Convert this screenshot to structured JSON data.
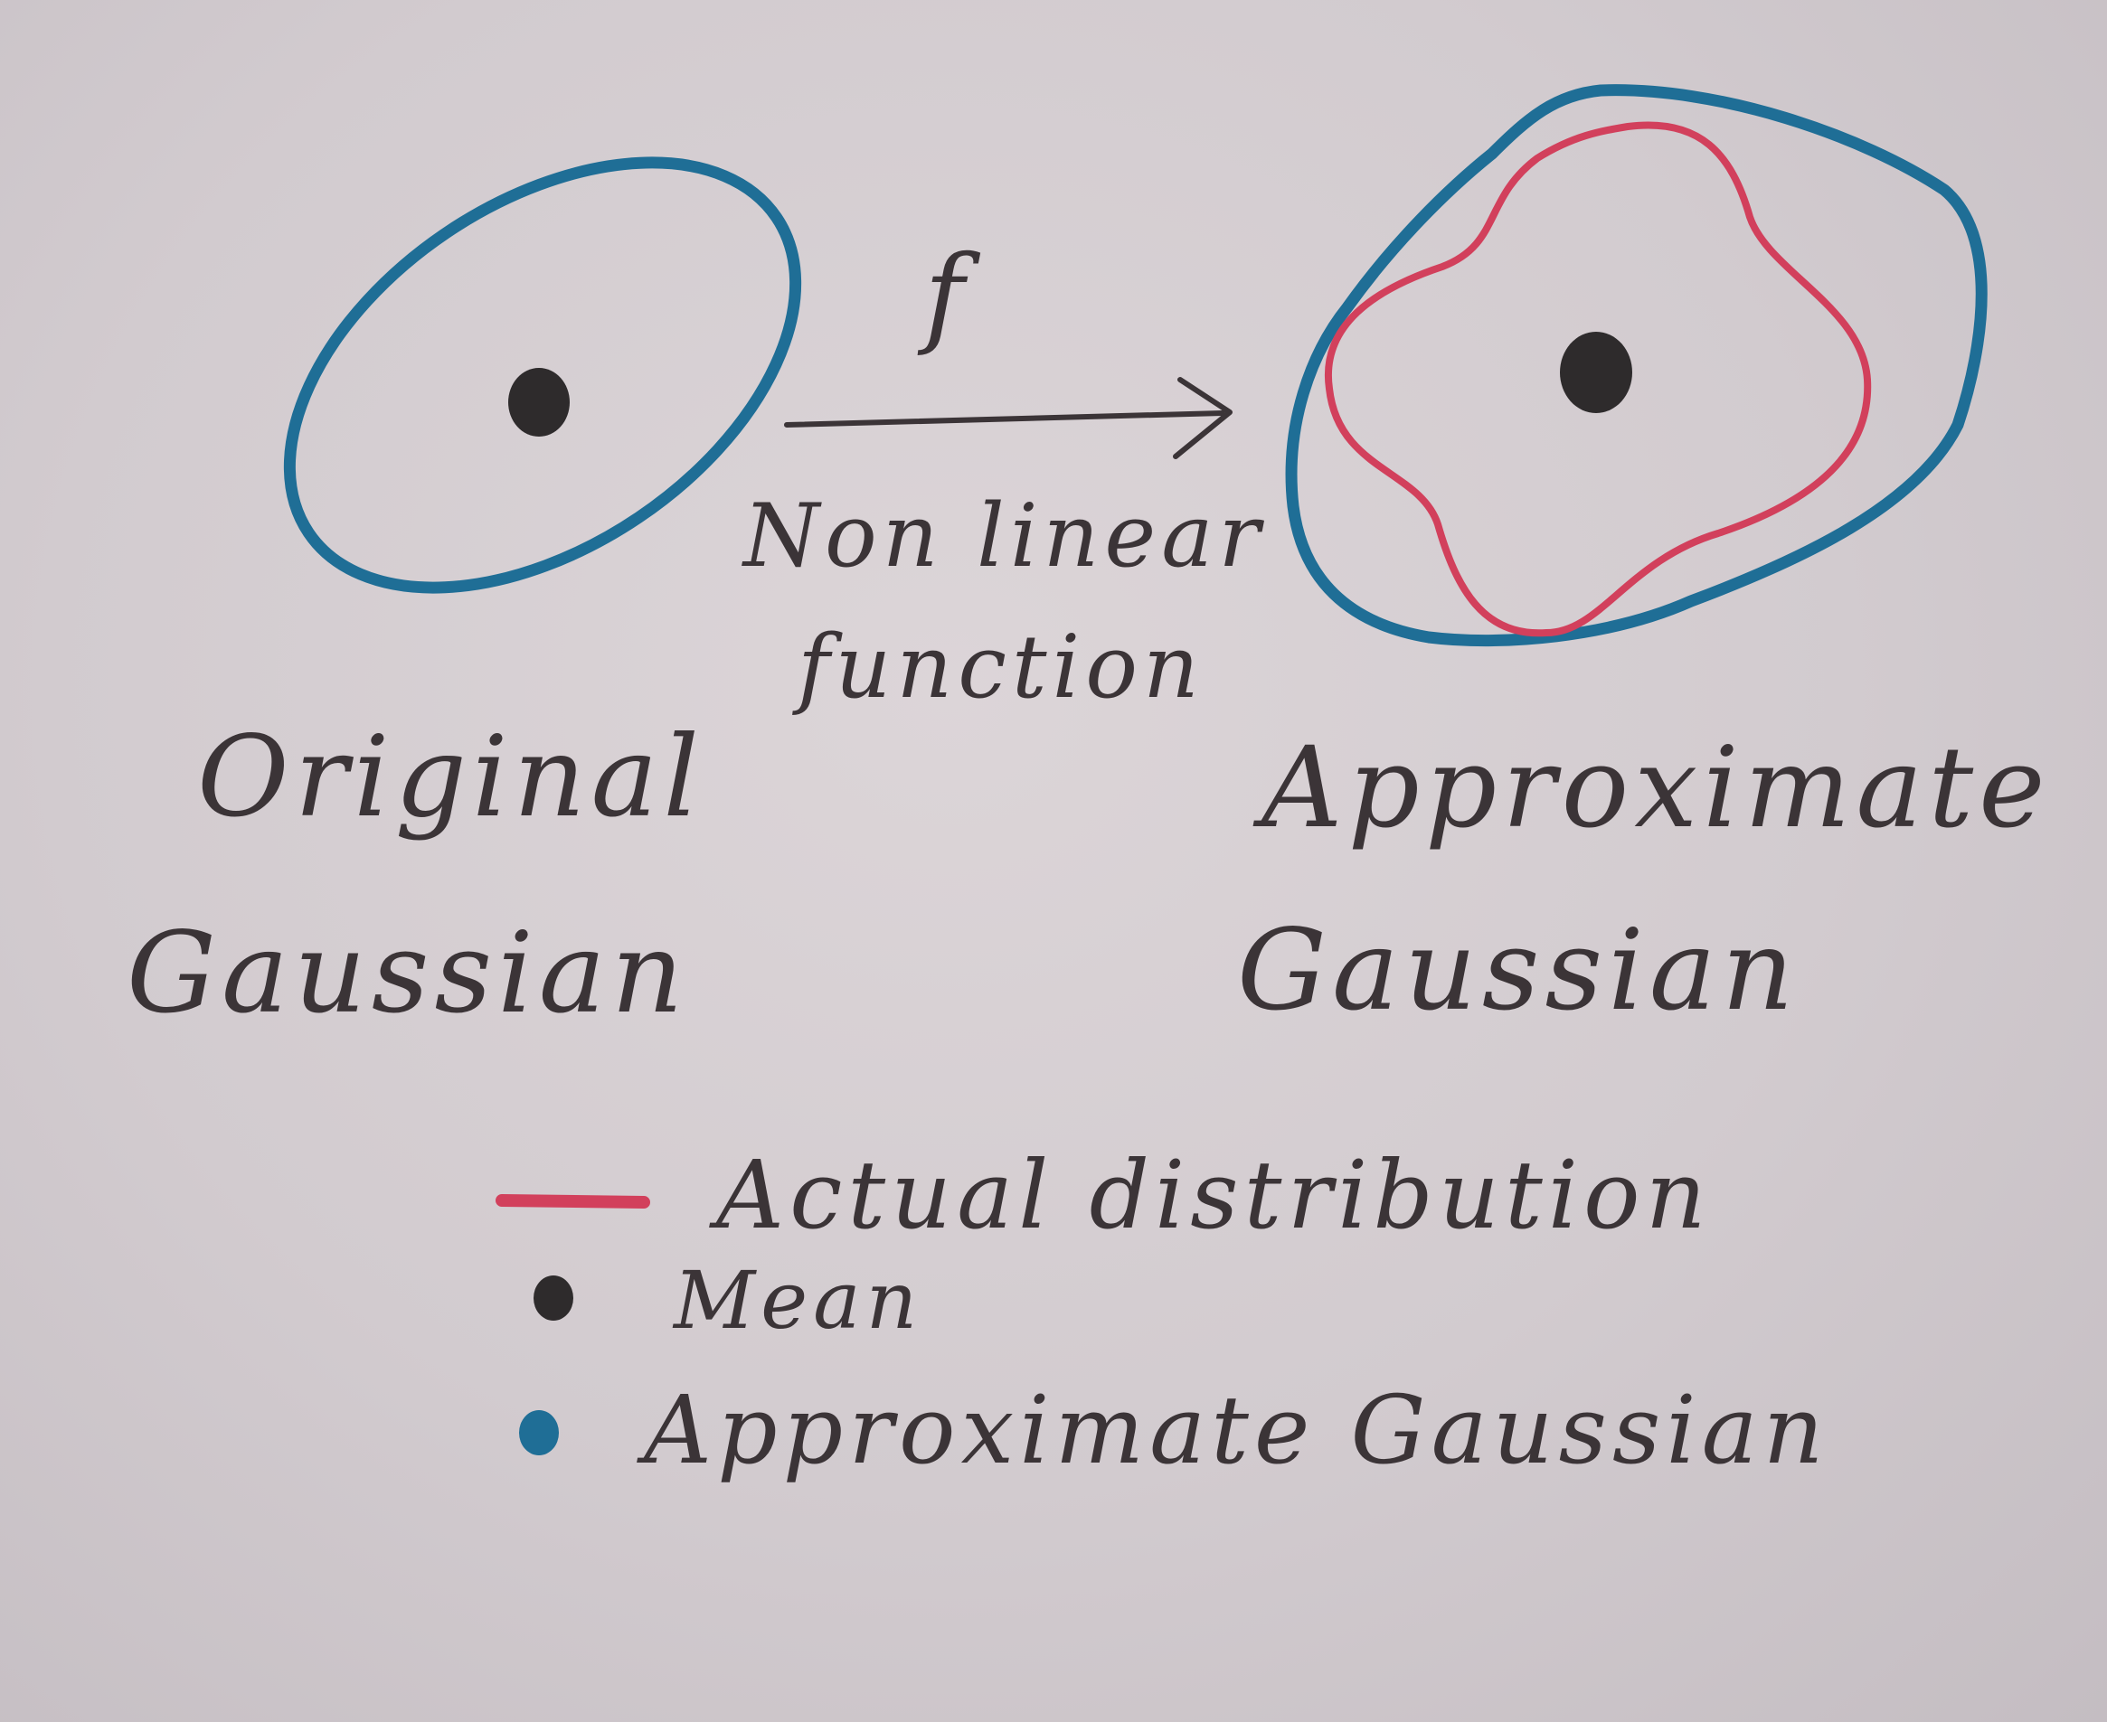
{
  "arrow": {
    "symbol": "f",
    "caption_line1": "Non linear",
    "caption_line2": "function"
  },
  "left_label": {
    "line1": "Original",
    "line2": "Gaussian"
  },
  "right_label": {
    "line1": "Approximate",
    "line2": "Gaussian"
  },
  "legend": {
    "actual_distribution": "Actual distribution",
    "mean": "Mean",
    "approximate_gaussian": "Approximate Gaussian"
  },
  "colors": {
    "gaussian_blue": "#1f6e96",
    "actual_red": "#d2405c",
    "mean_black": "#2e2b2c",
    "ink": "#3b3437"
  }
}
